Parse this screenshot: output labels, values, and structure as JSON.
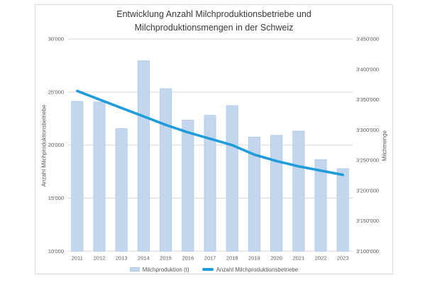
{
  "chart_data": {
    "type": "combo-bar-line",
    "title": "Entwicklung Anzahl Milchproduktionsbetriebe und Milchproduktionsmengen in der Schweiz",
    "title_lines": [
      "Entwicklung Anzahl Milchproduktionsbetriebe und",
      "Milchproduktionsmengen in der Schweiz"
    ],
    "categories": [
      "2011",
      "2012",
      "2013",
      "2014",
      "2015",
      "2016",
      "2017",
      "2018",
      "2019",
      "2020",
      "2021",
      "2022",
      "2023"
    ],
    "series": [
      {
        "name": "Milchproduktion (t)",
        "type": "bar",
        "axis": "right",
        "color": "#c3d6ee",
        "border_color": "#aecbea",
        "values": [
          3347000,
          3346000,
          3302000,
          3414000,
          3368000,
          3316000,
          3324000,
          3340000,
          3288000,
          3291000,
          3298000,
          3251000,
          3236000
        ]
      },
      {
        "name": "Anzahl Milchproduktionsbetriebe",
        "type": "line",
        "axis": "left",
        "color": "#1f9cd9",
        "values": [
          25100,
          24300,
          23500,
          22700,
          21900,
          21200,
          20600,
          20000,
          19100,
          18500,
          18000,
          17600,
          17200
        ]
      }
    ],
    "left_axis": {
      "title": "Anzahl Milchproduktionsbetriebe",
      "min": 10000,
      "max": 30000,
      "tick_step": 5000,
      "tick_labels": [
        "30'000",
        "25'000",
        "20'000",
        "15'000",
        "10'000"
      ],
      "tick_values": [
        30000,
        25000,
        20000,
        15000,
        10000
      ]
    },
    "right_axis": {
      "title": "Milchmenge",
      "min": 3100000,
      "max": 3450000,
      "tick_step": 50000,
      "tick_labels": [
        "3'450'000",
        "3'400'000",
        "3'350'000",
        "3'300'000",
        "3'250'000",
        "3'200'000",
        "3'150'000",
        "3'100'000"
      ],
      "tick_values": [
        3450000,
        3400000,
        3350000,
        3300000,
        3250000,
        3200000,
        3150000,
        3100000
      ]
    },
    "grid": {
      "horizontal": true,
      "at_left_ticks": true,
      "color": "#d9d9d9"
    },
    "legend_position": "bottom",
    "legend": [
      {
        "label": "Milchproduktion (t)",
        "swatch": "bar"
      },
      {
        "label": "Anzahl Milchproduktionsbetriebe",
        "swatch": "line"
      }
    ],
    "text_colors": {
      "title": "#3a3a3a",
      "axis": "#595959"
    }
  }
}
